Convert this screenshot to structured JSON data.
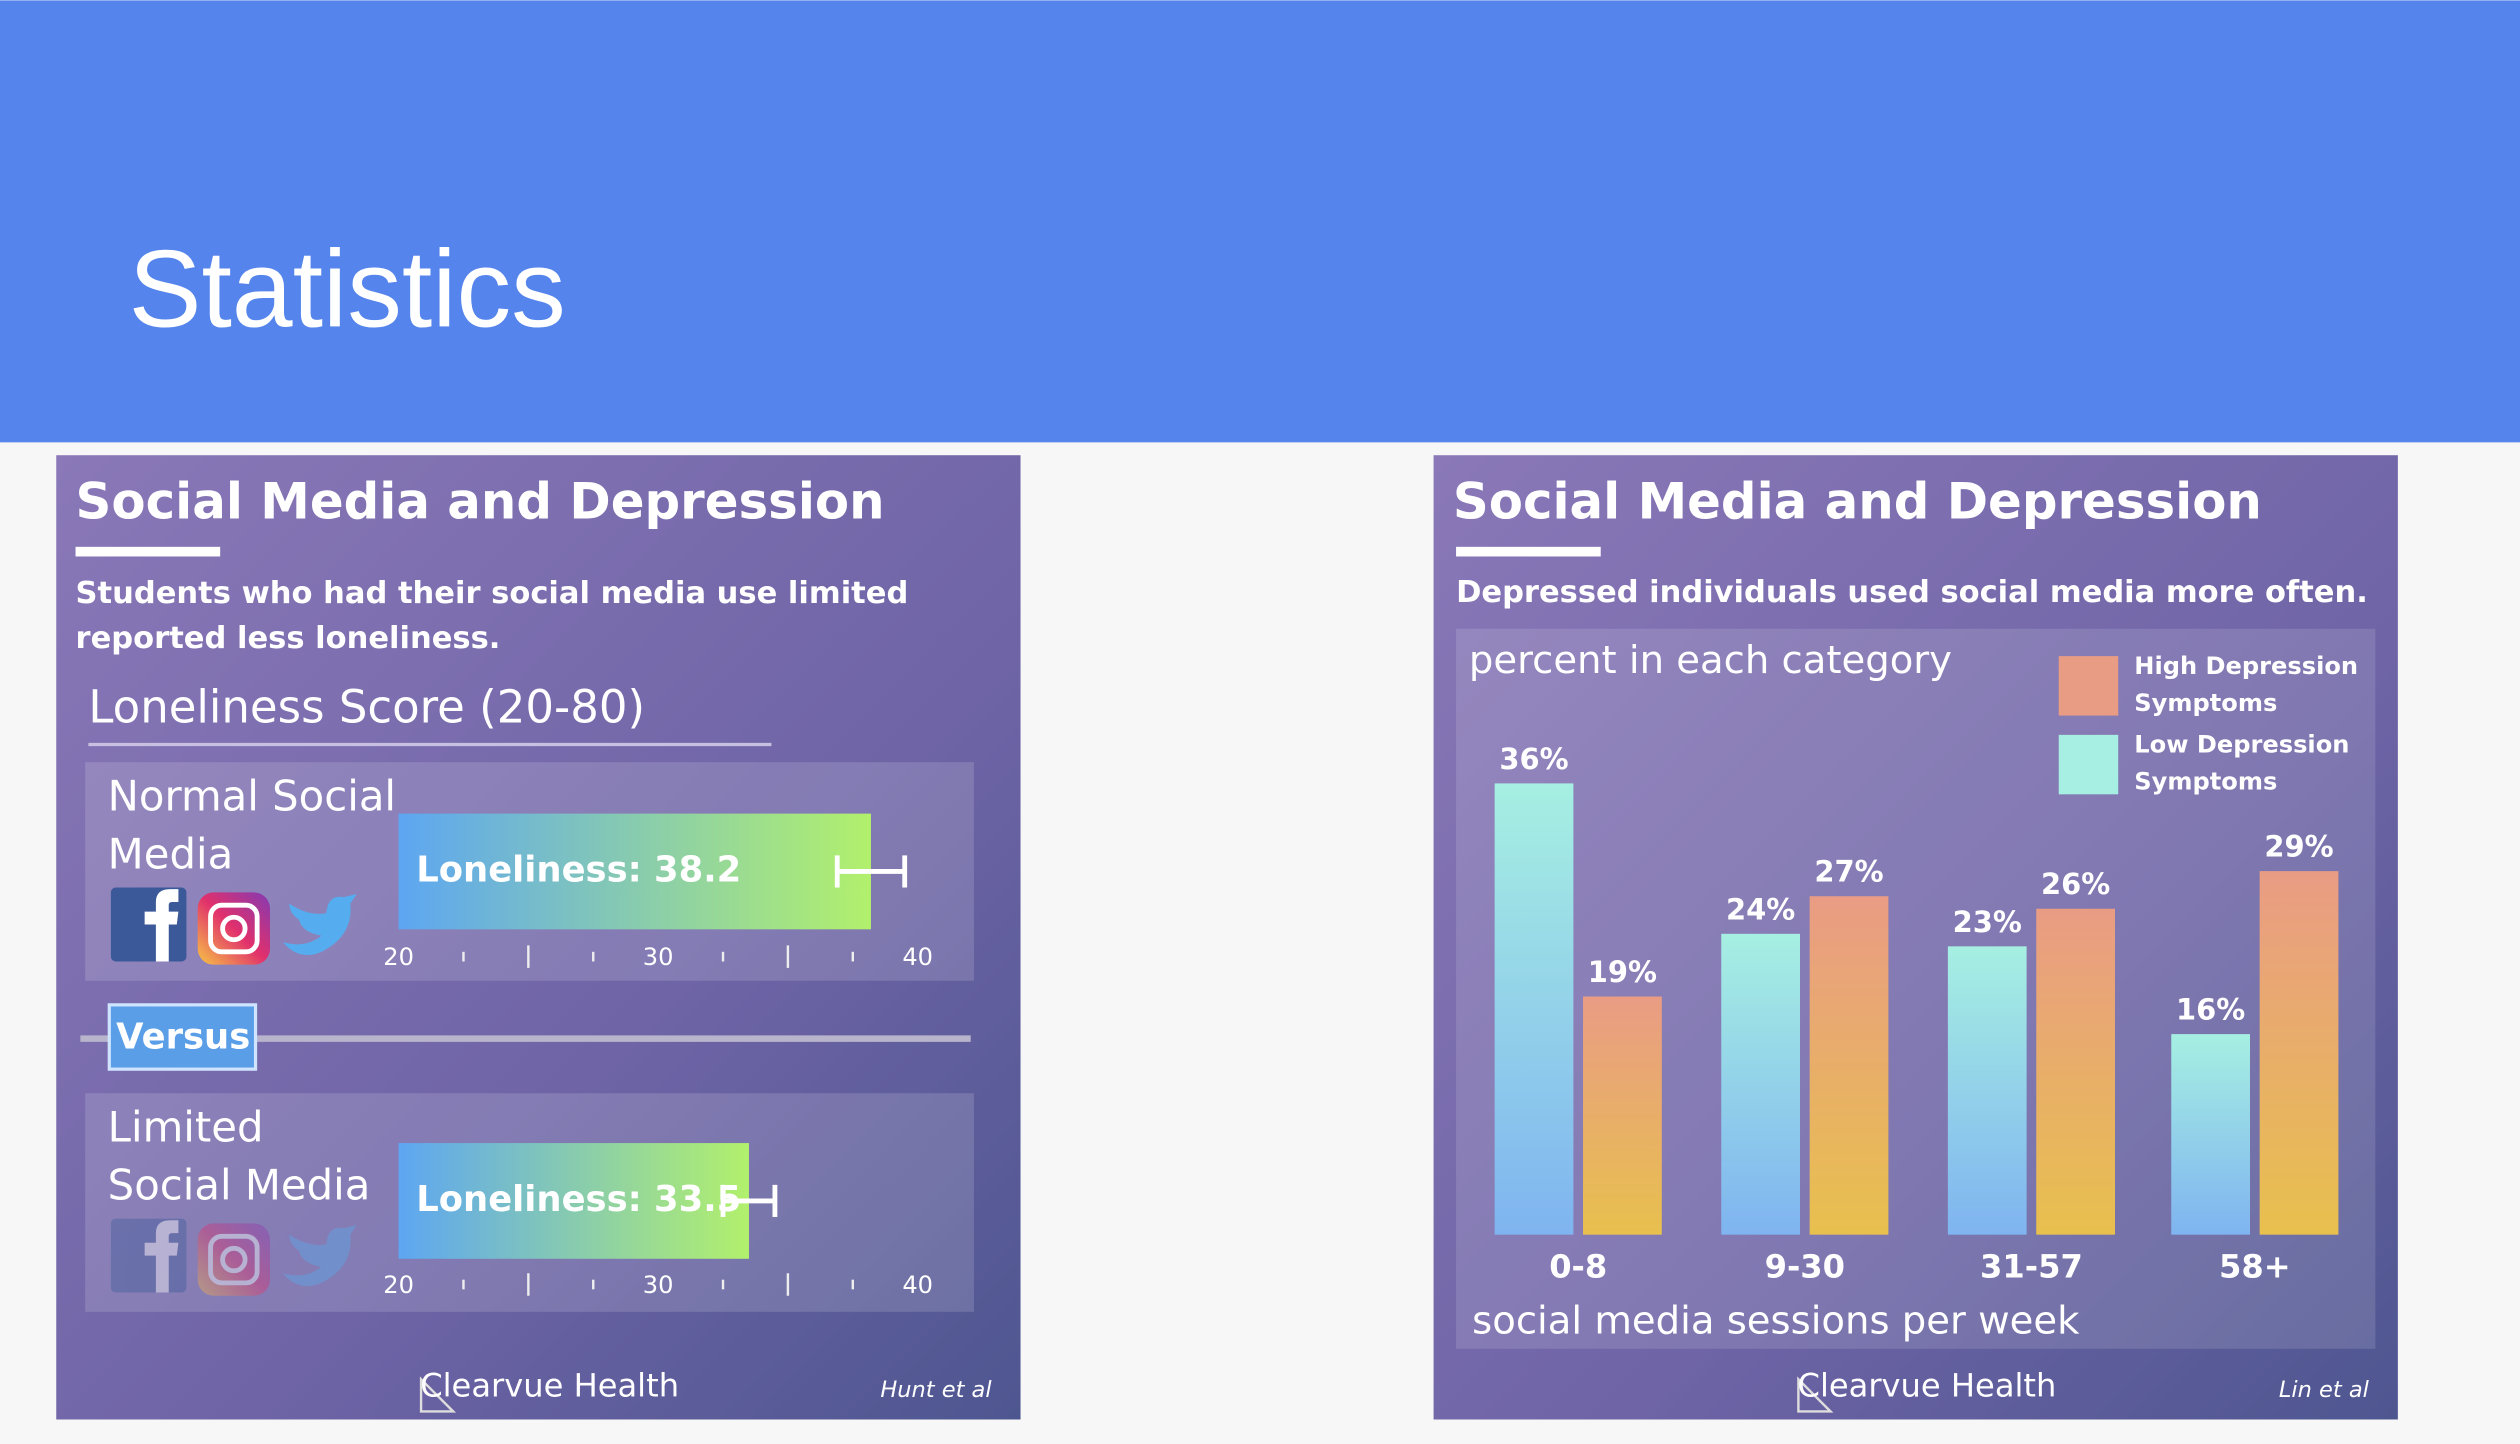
{
  "slide_title": "Statistics",
  "chart_data": [
    {
      "type": "hbar",
      "title": "Social Media and Depression",
      "subtitle": "Students who had their social media use limited reported less loneliness.",
      "axis_label": "Loneliness Score (20-80)",
      "categories": [
        "Normal Social Media",
        "Limited Social Media"
      ],
      "values": [
        38.2,
        33.5
      ],
      "value_labels": [
        "Loneliness: 38.2",
        "Loneliness: 33.5"
      ],
      "errors": [
        1.3,
        1.0
      ],
      "xlim": [
        20,
        40
      ],
      "xticks": [
        20,
        30,
        40
      ],
      "minor_xticks": [
        22.5,
        25,
        27.5,
        32.5,
        35,
        37.5
      ],
      "divider": "Versus",
      "brand": "Clearvue Health",
      "source": "Hunt et al"
    },
    {
      "type": "bar",
      "title": "Social Media and Depression",
      "subtitle": "Depressed individuals used social media more often.",
      "ylabel": "percent in each category",
      "xlabel": "social media sessions per week",
      "categories": [
        "0-8",
        "9-30",
        "31-57",
        "58+"
      ],
      "series": [
        {
          "name": "Low Depression Symptoms",
          "color": "#a6efe2",
          "values": [
            36,
            24,
            23,
            16
          ],
          "value_labels": [
            "36%",
            "24%",
            "23%",
            "16%"
          ]
        },
        {
          "name": "High Depression Symptoms",
          "color": "#e99c84",
          "values": [
            19,
            27,
            26,
            29
          ],
          "value_labels": [
            "19%",
            "27%",
            "26%",
            "29%"
          ]
        }
      ],
      "ylim": [
        0,
        40
      ],
      "legend": "top-right",
      "brand": "Clearvue Health",
      "source": "Lin et al"
    }
  ]
}
